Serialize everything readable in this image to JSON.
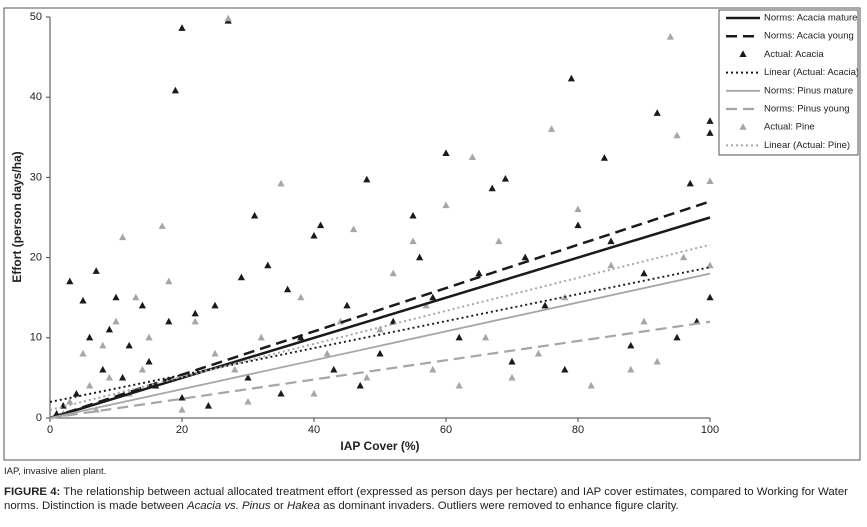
{
  "chart_data": {
    "type": "scatter",
    "xlabel": "IAP Cover (%)",
    "ylabel": "Effort (person days/ha)",
    "xlim": [
      0,
      100
    ],
    "xticks": [
      0,
      20,
      40,
      60,
      80,
      100
    ],
    "ylim": [
      0,
      50
    ],
    "yticks": [
      0,
      10,
      20,
      30,
      40,
      50
    ],
    "legend": "upper right",
    "series": [
      {
        "name": "Norms: Acacia mature",
        "kind": "line",
        "color": "#1a1a1a",
        "dash": "solid",
        "width": 2.5,
        "x": [
          0,
          100
        ],
        "values": [
          0,
          25
        ]
      },
      {
        "name": "Norms: Acacia young",
        "kind": "line",
        "color": "#1a1a1a",
        "dash": "dashed",
        "width": 2.5,
        "x": [
          0,
          100
        ],
        "values": [
          0,
          27
        ]
      },
      {
        "name": "Actual: Acacia",
        "kind": "triangle",
        "color": "#1a1a1a",
        "x": [
          20,
          27,
          19,
          79,
          92,
          100,
          100,
          60,
          69,
          67,
          48,
          41,
          40,
          55,
          31,
          84,
          97,
          7,
          3,
          5,
          10,
          14,
          18,
          22,
          25,
          29,
          33,
          36,
          38,
          12,
          15,
          8,
          4,
          2,
          1,
          6,
          9,
          11,
          16,
          20,
          24,
          30,
          35,
          43,
          47,
          50,
          52,
          58,
          62,
          65,
          70,
          72,
          75,
          78,
          80,
          85,
          88,
          90,
          95,
          98,
          100,
          56,
          45
        ],
        "values": [
          48.6,
          49.5,
          40.8,
          42.3,
          38,
          37,
          35.5,
          33,
          29.8,
          28.6,
          29.7,
          24,
          22.7,
          25.2,
          25.2,
          32.4,
          29.2,
          18.3,
          17,
          14.6,
          15,
          14,
          12,
          13,
          14,
          17.5,
          19,
          16,
          10,
          9,
          7,
          6,
          3,
          1.5,
          0.5,
          10,
          11,
          5,
          4,
          2.5,
          1.5,
          5,
          3,
          6,
          4,
          8,
          12,
          15,
          10,
          18,
          7,
          20,
          14,
          6,
          24,
          22,
          9,
          18,
          10,
          12,
          15,
          20,
          14
        ]
      },
      {
        "name": "Linear (Actual: Acacia)",
        "kind": "line",
        "color": "#1a1a1a",
        "dash": "dotted",
        "width": 2,
        "x": [
          0,
          100
        ],
        "values": [
          2,
          18.8
        ]
      },
      {
        "name": "Norms: Pinus mature",
        "kind": "line",
        "color": "#a6a6a6",
        "dash": "solid",
        "width": 1.8,
        "x": [
          0,
          100
        ],
        "values": [
          0,
          18
        ]
      },
      {
        "name": "Norms: Pinus young",
        "kind": "line",
        "color": "#a6a6a6",
        "dash": "dashed",
        "width": 2.2,
        "x": [
          0,
          100
        ],
        "values": [
          0,
          12
        ]
      },
      {
        "name": "Actual: Pine",
        "kind": "triangle",
        "color": "#a6a6a6",
        "x": [
          27,
          94,
          76,
          95,
          35,
          17,
          11,
          64,
          100,
          60,
          46,
          80,
          5,
          8,
          10,
          13,
          15,
          18,
          22,
          25,
          28,
          32,
          38,
          42,
          48,
          52,
          55,
          58,
          62,
          66,
          70,
          74,
          78,
          82,
          85,
          88,
          92,
          96,
          100,
          3,
          6,
          9,
          12,
          2,
          7,
          14,
          20,
          30,
          40,
          44,
          50,
          57,
          68,
          90
        ],
        "values": [
          49.8,
          47.5,
          36,
          35.2,
          29.2,
          23.9,
          22.5,
          32.5,
          29.5,
          26.5,
          23.5,
          26,
          8,
          9,
          12,
          15,
          10,
          17,
          12,
          8,
          6,
          10,
          15,
          8,
          5,
          18,
          22,
          6,
          4,
          10,
          5,
          8,
          15,
          4,
          19,
          6,
          7,
          20,
          19,
          2,
          4,
          5,
          3,
          0.5,
          1,
          6,
          1,
          2,
          3,
          12,
          11,
          14,
          22,
          12
        ]
      },
      {
        "name": "Linear (Actual: Pine)",
        "kind": "line",
        "color": "#a6a6a6",
        "dash": "dotted",
        "width": 2,
        "x": [
          0,
          100
        ],
        "values": [
          1,
          21.6
        ]
      }
    ]
  },
  "footnote": "IAP, invasive alien plant.",
  "caption_label": "FIGURE 4:",
  "caption_segments": [
    {
      "text": " The relationship between actual allocated treatment effort (expressed as person days per hectare) and IAP cover estimates, compared to Working for Water norms. Distinction is made between ",
      "italic": false
    },
    {
      "text": "Acacia vs. Pinus",
      "italic": true
    },
    {
      "text": " or ",
      "italic": false
    },
    {
      "text": "Hakea",
      "italic": true
    },
    {
      "text": " as dominant invaders. Outliers were removed to enhance figure clarity.",
      "italic": false
    }
  ]
}
